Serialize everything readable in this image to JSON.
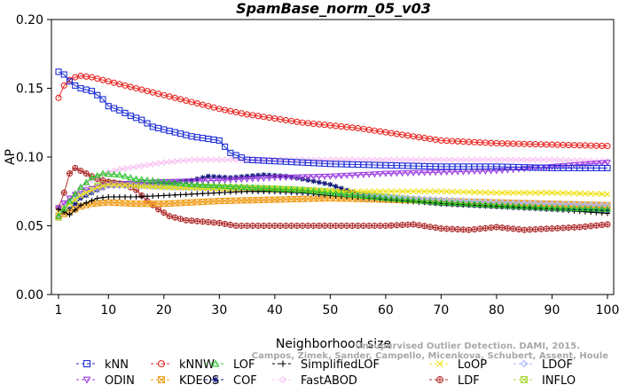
{
  "chart_data": {
    "type": "line",
    "title": "SpamBase_norm_05_v03",
    "xlabel": "Neighborhood size",
    "ylabel": "AP",
    "xlim": [
      1,
      100
    ],
    "ylim": [
      0,
      0.2
    ],
    "xticks": [
      "1",
      "10",
      "20",
      "30",
      "40",
      "50",
      "60",
      "70",
      "80",
      "90",
      "100"
    ],
    "yticks": [
      "0.00",
      "0.05",
      "0.10",
      "0.15",
      "0.20"
    ],
    "grid": false,
    "legend_position": "bottom",
    "watermark": "Campos, Zimek, Sander, Campello, Micenkova, Schubert, Assent, Houle",
    "watermark2": "Unsupervised Outlier Detection. DAMI, 2015.",
    "series": [
      {
        "name": "kNN",
        "color": "#1f2fd6",
        "marker": "square",
        "points": [
          [
            1,
            0.162
          ],
          [
            2,
            0.16
          ],
          [
            3,
            0.155
          ],
          [
            4,
            0.152
          ],
          [
            5,
            0.15
          ],
          [
            6,
            0.149
          ],
          [
            7,
            0.148
          ],
          [
            8,
            0.145
          ],
          [
            9,
            0.142
          ],
          [
            10,
            0.137
          ],
          [
            12,
            0.134
          ],
          [
            14,
            0.13
          ],
          [
            16,
            0.127
          ],
          [
            18,
            0.122
          ],
          [
            20,
            0.12
          ],
          [
            25,
            0.115
          ],
          [
            30,
            0.112
          ],
          [
            32,
            0.103
          ],
          [
            35,
            0.098
          ],
          [
            40,
            0.097
          ],
          [
            45,
            0.096
          ],
          [
            50,
            0.095
          ],
          [
            60,
            0.094
          ],
          [
            70,
            0.093
          ],
          [
            80,
            0.093
          ],
          [
            90,
            0.092
          ],
          [
            100,
            0.092
          ]
        ]
      },
      {
        "name": "kNNW",
        "color": "#e8231e",
        "marker": "circle",
        "points": [
          [
            1,
            0.143
          ],
          [
            2,
            0.152
          ],
          [
            3,
            0.156
          ],
          [
            4,
            0.158
          ],
          [
            5,
            0.159
          ],
          [
            7,
            0.158
          ],
          [
            10,
            0.155
          ],
          [
            15,
            0.15
          ],
          [
            20,
            0.145
          ],
          [
            25,
            0.14
          ],
          [
            30,
            0.135
          ],
          [
            35,
            0.131
          ],
          [
            40,
            0.128
          ],
          [
            45,
            0.125
          ],
          [
            50,
            0.123
          ],
          [
            55,
            0.121
          ],
          [
            60,
            0.118
          ],
          [
            65,
            0.115
          ],
          [
            70,
            0.112
          ],
          [
            75,
            0.111
          ],
          [
            80,
            0.11
          ],
          [
            90,
            0.109
          ],
          [
            100,
            0.108
          ]
        ]
      },
      {
        "name": "LOF",
        "color": "#2ec42e",
        "marker": "triangle",
        "points": [
          [
            1,
            0.057
          ],
          [
            3,
            0.068
          ],
          [
            5,
            0.078
          ],
          [
            7,
            0.085
          ],
          [
            9,
            0.088
          ],
          [
            12,
            0.087
          ],
          [
            15,
            0.084
          ],
          [
            20,
            0.082
          ],
          [
            25,
            0.08
          ],
          [
            30,
            0.079
          ],
          [
            35,
            0.078
          ],
          [
            40,
            0.077
          ],
          [
            45,
            0.076
          ],
          [
            50,
            0.074
          ],
          [
            60,
            0.07
          ],
          [
            70,
            0.067
          ],
          [
            80,
            0.065
          ],
          [
            90,
            0.063
          ],
          [
            100,
            0.062
          ]
        ]
      },
      {
        "name": "SimplifiedLOF",
        "color": "#000000",
        "marker": "plus",
        "points": [
          [
            1,
            0.062
          ],
          [
            3,
            0.058
          ],
          [
            5,
            0.065
          ],
          [
            8,
            0.07
          ],
          [
            10,
            0.071
          ],
          [
            15,
            0.071
          ],
          [
            20,
            0.072
          ],
          [
            25,
            0.073
          ],
          [
            30,
            0.074
          ],
          [
            35,
            0.075
          ],
          [
            40,
            0.075
          ],
          [
            45,
            0.074
          ],
          [
            50,
            0.072
          ],
          [
            60,
            0.069
          ],
          [
            70,
            0.066
          ],
          [
            80,
            0.064
          ],
          [
            90,
            0.062
          ],
          [
            100,
            0.059
          ]
        ]
      },
      {
        "name": "LoOP",
        "color": "#f0e010",
        "marker": "x",
        "points": [
          [
            1,
            0.06
          ],
          [
            3,
            0.066
          ],
          [
            5,
            0.072
          ],
          [
            8,
            0.078
          ],
          [
            10,
            0.08
          ],
          [
            15,
            0.079
          ],
          [
            20,
            0.078
          ],
          [
            30,
            0.077
          ],
          [
            40,
            0.076
          ],
          [
            50,
            0.075
          ],
          [
            60,
            0.075
          ],
          [
            70,
            0.075
          ],
          [
            80,
            0.074
          ],
          [
            90,
            0.074
          ],
          [
            100,
            0.073
          ]
        ]
      },
      {
        "name": "LDOF",
        "color": "#aab4f8",
        "marker": "diamond",
        "points": [
          [
            1,
            0.058
          ],
          [
            3,
            0.066
          ],
          [
            5,
            0.072
          ],
          [
            8,
            0.077
          ],
          [
            10,
            0.079
          ],
          [
            15,
            0.079
          ],
          [
            20,
            0.078
          ],
          [
            30,
            0.077
          ],
          [
            40,
            0.075
          ],
          [
            50,
            0.073
          ],
          [
            60,
            0.071
          ],
          [
            70,
            0.069
          ],
          [
            80,
            0.067
          ],
          [
            90,
            0.066
          ],
          [
            100,
            0.065
          ]
        ]
      },
      {
        "name": "ODIN",
        "color": "#9a3be0",
        "marker": "triangle-down",
        "points": [
          [
            1,
            0.063
          ],
          [
            3,
            0.07
          ],
          [
            5,
            0.075
          ],
          [
            8,
            0.078
          ],
          [
            10,
            0.08
          ],
          [
            15,
            0.081
          ],
          [
            20,
            0.082
          ],
          [
            30,
            0.083
          ],
          [
            35,
            0.084
          ],
          [
            40,
            0.085
          ],
          [
            50,
            0.086
          ],
          [
            60,
            0.088
          ],
          [
            70,
            0.089
          ],
          [
            80,
            0.09
          ],
          [
            90,
            0.093
          ],
          [
            100,
            0.096
          ]
        ]
      },
      {
        "name": "KDEOS",
        "color": "#f0a020",
        "marker": "square-x",
        "points": [
          [
            1,
            0.057
          ],
          [
            3,
            0.06
          ],
          [
            5,
            0.064
          ],
          [
            7,
            0.066
          ],
          [
            10,
            0.067
          ],
          [
            15,
            0.066
          ],
          [
            20,
            0.066
          ],
          [
            25,
            0.067
          ],
          [
            30,
            0.068
          ],
          [
            40,
            0.069
          ],
          [
            50,
            0.07
          ],
          [
            60,
            0.069
          ],
          [
            70,
            0.068
          ],
          [
            80,
            0.067
          ],
          [
            90,
            0.066
          ],
          [
            100,
            0.065
          ]
        ]
      },
      {
        "name": "COF",
        "color": "#10187a",
        "marker": "star",
        "points": [
          [
            1,
            0.058
          ],
          [
            3,
            0.062
          ],
          [
            5,
            0.07
          ],
          [
            8,
            0.076
          ],
          [
            10,
            0.079
          ],
          [
            15,
            0.08
          ],
          [
            20,
            0.081
          ],
          [
            25,
            0.083
          ],
          [
            28,
            0.086
          ],
          [
            32,
            0.085
          ],
          [
            35,
            0.086
          ],
          [
            38,
            0.087
          ],
          [
            42,
            0.086
          ],
          [
            45,
            0.084
          ],
          [
            50,
            0.08
          ],
          [
            55,
            0.073
          ],
          [
            60,
            0.07
          ],
          [
            70,
            0.066
          ],
          [
            80,
            0.064
          ],
          [
            90,
            0.062
          ],
          [
            100,
            0.061
          ]
        ]
      },
      {
        "name": "FastABOD",
        "color": "#f8c0f0",
        "marker": "diamond",
        "points": [
          [
            1,
            0.06
          ],
          [
            3,
            0.07
          ],
          [
            5,
            0.078
          ],
          [
            8,
            0.086
          ],
          [
            10,
            0.089
          ],
          [
            12,
            0.091
          ],
          [
            15,
            0.093
          ],
          [
            20,
            0.096
          ],
          [
            25,
            0.098
          ],
          [
            30,
            0.098
          ],
          [
            40,
            0.098
          ],
          [
            50,
            0.098
          ],
          [
            60,
            0.098
          ],
          [
            70,
            0.098
          ],
          [
            80,
            0.098
          ],
          [
            90,
            0.098
          ],
          [
            100,
            0.097
          ]
        ]
      },
      {
        "name": "LDF",
        "color": "#b03030",
        "marker": "circle-plus",
        "points": [
          [
            1,
            0.063
          ],
          [
            2,
            0.074
          ],
          [
            3,
            0.088
          ],
          [
            4,
            0.092
          ],
          [
            6,
            0.088
          ],
          [
            8,
            0.084
          ],
          [
            10,
            0.082
          ],
          [
            13,
            0.08
          ],
          [
            15,
            0.076
          ],
          [
            17,
            0.068
          ],
          [
            19,
            0.062
          ],
          [
            21,
            0.057
          ],
          [
            24,
            0.054
          ],
          [
            27,
            0.053
          ],
          [
            30,
            0.052
          ],
          [
            33,
            0.05
          ],
          [
            40,
            0.05
          ],
          [
            50,
            0.05
          ],
          [
            60,
            0.05
          ],
          [
            65,
            0.051
          ],
          [
            70,
            0.048
          ],
          [
            75,
            0.047
          ],
          [
            80,
            0.049
          ],
          [
            85,
            0.047
          ],
          [
            90,
            0.048
          ],
          [
            95,
            0.049
          ],
          [
            100,
            0.051
          ]
        ]
      },
      {
        "name": "INFLO",
        "color": "#a8d838",
        "marker": "square-x",
        "points": [
          [
            1,
            0.056
          ],
          [
            3,
            0.064
          ],
          [
            5,
            0.072
          ],
          [
            8,
            0.079
          ],
          [
            10,
            0.081
          ],
          [
            15,
            0.08
          ],
          [
            20,
            0.079
          ],
          [
            30,
            0.078
          ],
          [
            40,
            0.077
          ],
          [
            50,
            0.075
          ],
          [
            60,
            0.071
          ],
          [
            70,
            0.067
          ],
          [
            80,
            0.065
          ],
          [
            90,
            0.064
          ],
          [
            100,
            0.063
          ]
        ]
      }
    ]
  }
}
